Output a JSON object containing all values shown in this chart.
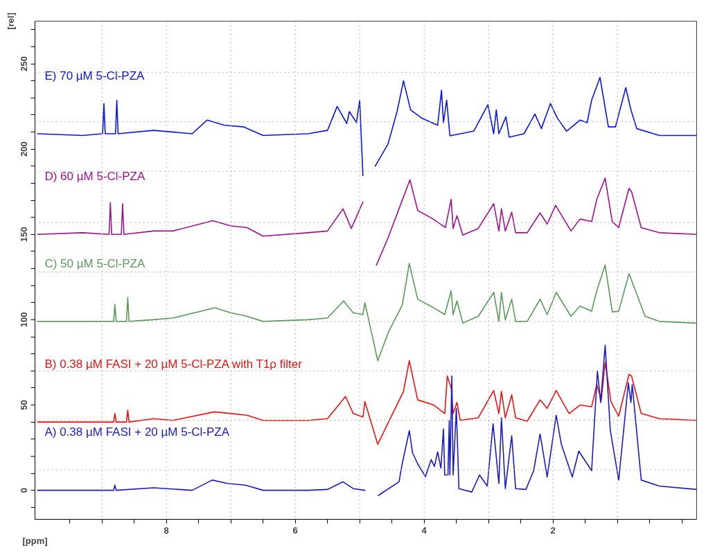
{
  "chart_data": {
    "type": "line",
    "xlabel": "[ppm]",
    "ylabel": "[rel]",
    "xlim": [
      10.04,
      -0.23
    ],
    "ylim": [
      -17,
      275
    ],
    "xticks": [
      {
        "value": 9.5,
        "label": null
      },
      {
        "value": 9,
        "label": null
      },
      {
        "value": 8.5,
        "label": null
      },
      8,
      {
        "value": 7.5,
        "label": null
      },
      {
        "value": 7,
        "label": null
      },
      {
        "value": 6.5,
        "label": null
      },
      6,
      {
        "value": 5.5,
        "label": null
      },
      {
        "value": 5,
        "label": null
      },
      {
        "value": 4.5,
        "label": null
      },
      4,
      {
        "value": 3.5,
        "label": null
      },
      {
        "value": 3,
        "label": null
      },
      {
        "value": 2.5,
        "label": null
      },
      2,
      {
        "value": 1.5,
        "label": null
      },
      {
        "value": 1,
        "label": null
      },
      {
        "value": 0.5,
        "label": null
      },
      {
        "value": 0,
        "label": null
      }
    ],
    "yticks": [
      {
        "value": -10,
        "label": null
      },
      0,
      {
        "value": 10,
        "label": null
      },
      {
        "value": 20,
        "label": null
      },
      {
        "value": 30,
        "label": null
      },
      {
        "value": 40,
        "label": null
      },
      50,
      {
        "value": 60,
        "label": null
      },
      {
        "value": 70,
        "label": null
      },
      {
        "value": 80,
        "label": null
      },
      {
        "value": 90,
        "label": null
      },
      100,
      {
        "value": 110,
        "label": null
      },
      {
        "value": 120,
        "label": null
      },
      {
        "value": 130,
        "label": null
      },
      {
        "value": 140,
        "label": null
      },
      150,
      {
        "value": 160,
        "label": null
      },
      {
        "value": 170,
        "label": null
      },
      {
        "value": 180,
        "label": null
      },
      {
        "value": 190,
        "label": null
      },
      200,
      {
        "value": 210,
        "label": null
      },
      {
        "value": 220,
        "label": null
      },
      {
        "value": 230,
        "label": null
      },
      {
        "value": 240,
        "label": null
      },
      250,
      {
        "value": 260,
        "label": null
      },
      {
        "value": 270,
        "label": null
      }
    ],
    "grid": false,
    "marker": "none",
    "line_style": "solid",
    "ref_lines": [
      {
        "axis": "x",
        "value": 9,
        "color": "#b0b0b0",
        "line_style": "dotted"
      },
      {
        "axis": "x",
        "value": 8,
        "color": "#b0b0b0",
        "line_style": "dotted"
      },
      {
        "axis": "x",
        "value": 7,
        "color": "#b0b0b0",
        "line_style": "dotted"
      },
      {
        "axis": "x",
        "value": 6,
        "color": "#b0b0b0",
        "line_style": "dotted"
      },
      {
        "axis": "x",
        "value": 5,
        "color": "#b0b0b0",
        "line_style": "dotted"
      },
      {
        "axis": "x",
        "value": 4,
        "color": "#b0b0b0",
        "line_style": "dotted"
      },
      {
        "axis": "x",
        "value": 3,
        "color": "#b0b0b0",
        "line_style": "dotted"
      },
      {
        "axis": "x",
        "value": 2,
        "color": "#b0b0b0",
        "line_style": "dotted"
      },
      {
        "axis": "x",
        "value": 1,
        "color": "#b0b0b0",
        "line_style": "dotted"
      },
      {
        "axis": "y",
        "value": 12,
        "color": "#b0b0b0",
        "line_style": "dotted"
      },
      {
        "axis": "y",
        "value": 41,
        "color": "#b0b0b0",
        "line_style": "dotted"
      },
      {
        "axis": "y",
        "value": 70,
        "color": "#b0b0b0",
        "line_style": "dotted"
      },
      {
        "axis": "y",
        "value": 99,
        "color": "#b0b0b0",
        "line_style": "dotted"
      },
      {
        "axis": "y",
        "value": 128,
        "color": "#b0b0b0",
        "line_style": "dotted"
      },
      {
        "axis": "y",
        "value": 157,
        "color": "#b0b0b0",
        "line_style": "dotted"
      },
      {
        "axis": "y",
        "value": 187,
        "color": "#b0b0b0",
        "line_style": "dotted"
      },
      {
        "axis": "y",
        "value": 216,
        "color": "#b0b0b0",
        "line_style": "dotted"
      },
      {
        "axis": "y",
        "value": 245,
        "color": "#b0b0b0",
        "line_style": "dotted"
      }
    ],
    "series": [
      {
        "name": "E) 70 µM 5-Cl-PZA",
        "color": "#0a14e6",
        "x": [
          10.0,
          9.3,
          8.99,
          8.97,
          8.95,
          8.79,
          8.77,
          8.75,
          8.2,
          7.6,
          7.37,
          7.1,
          6.8,
          6.5,
          5.8,
          5.5,
          5.35,
          5.2,
          5.16,
          5.05,
          5.0,
          4.95,
          4.9,
          4.88,
          4.86,
          4.76,
          4.56,
          4.42,
          4.32,
          4.21,
          4.03,
          3.79,
          3.73,
          3.7,
          3.65,
          3.6,
          3.23,
          3.01,
          2.92,
          2.88,
          2.84,
          2.73,
          2.68,
          2.45,
          2.28,
          2.18,
          2.04,
          1.93,
          1.79,
          1.58,
          1.47,
          1.4,
          1.27,
          1.14,
          1.03,
          0.87,
          0.79,
          0.7,
          0.35,
          -0.23
        ],
        "values": [
          209,
          208,
          209,
          226.7,
          209,
          209,
          228.7,
          209,
          211,
          209,
          217,
          214,
          213,
          208,
          209,
          211,
          225,
          215,
          222,
          215.5,
          228.7,
          184.5,
          null,
          null,
          null,
          190,
          203,
          222,
          240,
          223,
          218,
          214,
          234.5,
          215.5,
          228.7,
          207.8,
          210.5,
          226,
          209,
          223,
          209,
          219,
          207,
          209,
          220.5,
          212,
          226.7,
          218,
          210.5,
          217,
          215.5,
          228.7,
          242,
          213,
          213,
          236,
          223,
          212,
          208,
          208
        ]
      },
      {
        "name": "D) 60 µM 5-Cl-PZA",
        "color": "#a0108f",
        "x": [
          10.0,
          9.3,
          8.89,
          8.87,
          8.85,
          8.7,
          8.68,
          8.66,
          8.2,
          7.9,
          7.28,
          7.0,
          6.75,
          6.5,
          5.8,
          5.5,
          5.26,
          5.13,
          4.95,
          4.85,
          4.82,
          4.79,
          4.76,
          4.74,
          4.56,
          4.39,
          4.22,
          4.1,
          3.86,
          3.67,
          3.58,
          3.55,
          3.49,
          3.4,
          3.16,
          2.92,
          2.84,
          2.8,
          2.74,
          2.64,
          2.58,
          2.4,
          2.2,
          2.09,
          1.96,
          1.72,
          1.58,
          1.4,
          1.32,
          1.19,
          1.08,
          0.98,
          0.82,
          0.78,
          0.63,
          0.35,
          -0.23
        ],
        "values": [
          150,
          151,
          150,
          168.6,
          150,
          150,
          168,
          150,
          152,
          152,
          158,
          155,
          154,
          149,
          151,
          152,
          165,
          153.5,
          169,
          null,
          null,
          null,
          null,
          132,
          148,
          165,
          182,
          164,
          159,
          154,
          170.5,
          153.5,
          161,
          149.6,
          153.5,
          168,
          152,
          165,
          152,
          163,
          151,
          151,
          162.6,
          156,
          167,
          152,
          159,
          157.5,
          170.5,
          183,
          157.5,
          154,
          177,
          175,
          154,
          151,
          150
        ]
      },
      {
        "name": "C) 50 µM 5-Cl-PZA",
        "color": "#5a9a5a",
        "x": [
          10.0,
          9.3,
          8.82,
          8.8,
          8.78,
          8.62,
          8.6,
          8.58,
          8.2,
          7.9,
          7.25,
          7.0,
          6.75,
          6.5,
          5.8,
          5.5,
          5.25,
          5.1,
          4.95,
          4.92,
          4.72,
          4.55,
          4.34,
          4.23,
          4.1,
          3.85,
          3.68,
          3.58,
          3.55,
          3.49,
          3.4,
          3.16,
          2.92,
          2.84,
          2.8,
          2.74,
          2.64,
          2.58,
          2.4,
          2.2,
          2.09,
          1.95,
          1.72,
          1.58,
          1.4,
          1.32,
          1.19,
          1.08,
          0.98,
          0.82,
          0.72,
          0.57,
          0.35,
          -0.23
        ],
        "values": [
          99,
          99,
          99,
          109,
          99,
          99,
          113,
          99,
          100,
          101,
          107,
          104,
          102,
          99,
          100,
          101,
          111,
          104,
          103,
          110,
          76,
          93,
          108.5,
          133,
          112,
          107,
          103,
          117,
          103,
          111,
          98,
          102,
          116,
          99,
          116,
          100,
          112,
          99,
          99,
          112,
          103,
          116,
          102,
          108,
          105,
          117,
          132,
          104.6,
          105,
          127,
          117,
          102,
          99,
          98
        ]
      },
      {
        "name": "B) 0.38 µM FASI + 20 µM 5-Cl-PZA with T1ρ filter",
        "color": "#ee1111",
        "x": [
          10.0,
          9.3,
          8.82,
          8.8,
          8.78,
          8.62,
          8.6,
          8.58,
          8.2,
          7.9,
          7.25,
          7.0,
          6.75,
          6.5,
          5.8,
          5.5,
          5.22,
          5.1,
          4.95,
          4.92,
          4.72,
          4.32,
          4.23,
          4.1,
          3.85,
          3.68,
          3.64,
          3.58,
          3.55,
          3.49,
          3.44,
          3.16,
          2.92,
          2.84,
          2.8,
          2.74,
          2.64,
          2.58,
          2.4,
          2.2,
          2.09,
          1.95,
          1.75,
          1.58,
          1.4,
          1.32,
          1.25,
          1.19,
          1.1,
          0.98,
          0.82,
          0.78,
          0.63,
          0.35,
          -0.23
        ],
        "values": [
          40,
          40,
          40,
          45,
          40,
          40,
          47,
          40,
          42,
          41,
          46,
          45,
          44,
          41,
          41,
          42,
          55,
          45,
          43,
          52,
          27,
          58,
          76,
          53,
          50,
          45,
          67,
          60,
          45,
          51.5,
          41,
          42.5,
          58.5,
          45,
          58,
          42.5,
          56,
          42.5,
          40.5,
          53,
          48,
          58.5,
          45,
          50,
          49,
          62,
          53,
          75,
          52,
          43.5,
          68,
          67,
          45,
          42,
          41
        ]
      },
      {
        "name": "A) 0.38 µM FASI + 20 µM 5-Cl-PZA",
        "color": "#1a1ac8",
        "x": [
          10.0,
          9.3,
          8.82,
          8.8,
          8.78,
          8.2,
          7.6,
          7.29,
          7.05,
          6.77,
          6.5,
          5.8,
          5.5,
          5.26,
          5.1,
          4.92,
          4.88,
          4.86,
          4.83,
          4.8,
          4.77,
          4.74,
          4.71,
          4.39,
          4.34,
          4.23,
          4.18,
          4.1,
          3.98,
          3.89,
          3.84,
          3.79,
          3.74,
          3.7,
          3.68,
          3.65,
          3.64,
          3.63,
          3.61,
          3.6,
          3.57,
          3.55,
          3.5,
          3.46,
          3.26,
          3.14,
          3.02,
          2.93,
          2.84,
          2.8,
          2.74,
          2.64,
          2.58,
          2.42,
          2.3,
          2.2,
          2.09,
          1.95,
          1.87,
          1.7,
          1.6,
          1.47,
          1.4,
          1.31,
          1.26,
          1.19,
          1.11,
          0.98,
          0.83,
          0.79,
          0.77,
          0.63,
          0.35,
          -0.23
        ],
        "values": [
          0,
          0,
          0,
          3,
          0,
          1.5,
          0,
          6,
          4,
          3,
          0,
          0,
          0.5,
          5,
          1,
          0,
          null,
          null,
          null,
          null,
          null,
          null,
          -3,
          5,
          15.5,
          35,
          22,
          15.5,
          8,
          18,
          14,
          22.5,
          13,
          36,
          9,
          9,
          null,
          9,
          41,
          9,
          67,
          9,
          48,
          1,
          -1,
          9,
          2.5,
          39,
          4,
          42.5,
          1,
          32,
          1,
          0.5,
          11.5,
          33,
          7.8,
          44,
          27,
          7.8,
          23,
          15.5,
          11.5,
          70,
          51.5,
          85,
          35,
          6,
          63,
          51.5,
          62,
          6,
          2.5,
          0.5
        ]
      }
    ]
  }
}
